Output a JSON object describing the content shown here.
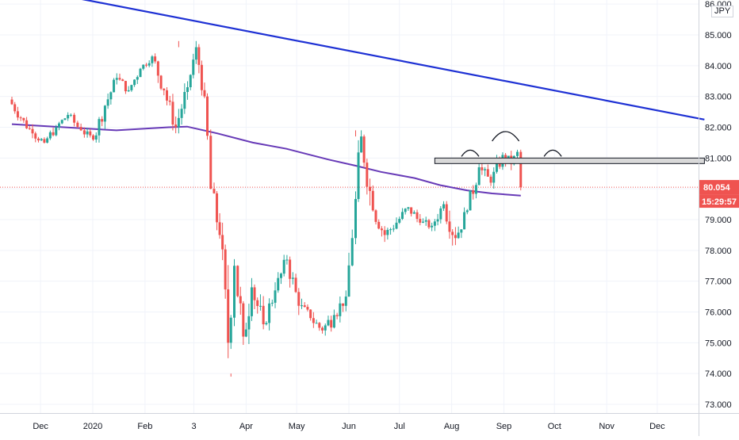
{
  "chart_data": {
    "type": "candlestick",
    "currency": "JPY",
    "y_axis": {
      "ticks": [
        "86.000",
        "85.000",
        "84.000",
        "83.000",
        "82.000",
        "81.000",
        "80.000",
        "79.000",
        "78.000",
        "77.000",
        "76.000",
        "75.000",
        "74.000",
        "73.000"
      ],
      "range": [
        72.8,
        86.1
      ]
    },
    "x_axis": {
      "labels": [
        "Dec",
        "2020",
        "Feb",
        "3",
        "Apr",
        "May",
        "Jun",
        "Jul",
        "Aug",
        "Sep",
        "Oct",
        "Nov",
        "Dec"
      ]
    },
    "last_price": {
      "value": "80.054",
      "countdown": "15:29:57"
    },
    "trendline": {
      "start": [
        "2019-11-14",
        86.6
      ],
      "end": [
        "2020-12-29",
        82.25
      ]
    },
    "resistance_zone": {
      "top": 81.0,
      "bottom": 80.82,
      "from": "2020-07-22",
      "to": "2020-12-29"
    },
    "moving_average": [
      [
        "2019-11-14",
        82.1
      ],
      [
        "2019-12-15",
        82.0
      ],
      [
        "2020-01-15",
        81.9
      ],
      [
        "2020-02-15",
        82.0
      ],
      [
        "2020-02-26",
        82.02
      ],
      [
        "2020-03-15",
        81.8
      ],
      [
        "2020-04-05",
        81.5
      ],
      [
        "2020-04-25",
        81.3
      ],
      [
        "2020-05-20",
        80.95
      ],
      [
        "2020-06-05",
        80.75
      ],
      [
        "2020-06-20",
        80.55
      ],
      [
        "2020-07-10",
        80.35
      ],
      [
        "2020-07-25",
        80.12
      ],
      [
        "2020-08-10",
        79.95
      ],
      [
        "2020-08-25",
        79.85
      ],
      [
        "2020-09-11",
        79.78
      ]
    ],
    "candles": [
      [
        "2019-11-14",
        82.9,
        82.3,
        83.1,
        82.2
      ],
      [
        "2019-11-21",
        82.3,
        81.8,
        82.5,
        81.6
      ],
      [
        "2019-11-28",
        81.8,
        81.5,
        82.0,
        81.3
      ],
      [
        "2019-12-05",
        81.5,
        82.0,
        82.3,
        81.4
      ],
      [
        "2019-12-12",
        82.0,
        82.4,
        82.6,
        81.9
      ],
      [
        "2019-12-19",
        82.4,
        81.9,
        82.5,
        81.7
      ],
      [
        "2019-12-27",
        81.9,
        81.6,
        82.1,
        81.4
      ],
      [
        "2020-01-03",
        81.6,
        82.7,
        82.9,
        81.5
      ],
      [
        "2020-01-10",
        82.7,
        83.6,
        83.8,
        82.6
      ],
      [
        "2020-01-17",
        83.6,
        83.2,
        83.9,
        83.0
      ],
      [
        "2020-01-24",
        83.2,
        83.9,
        84.1,
        83.1
      ],
      [
        "2020-01-31",
        83.9,
        84.3,
        84.5,
        83.8
      ],
      [
        "2020-02-07",
        84.3,
        83.2,
        84.4,
        82.9
      ],
      [
        "2020-02-14",
        83.2,
        82.0,
        83.3,
        81.7
      ],
      [
        "2020-02-21",
        82.0,
        83.3,
        83.5,
        81.8
      ],
      [
        "2020-02-28",
        83.3,
        84.6,
        84.8,
        83.2
      ],
      [
        "2020-03-04",
        84.6,
        83.0,
        84.7,
        82.6
      ],
      [
        "2020-03-09",
        83.0,
        80.0,
        83.1,
        79.5
      ],
      [
        "2020-03-13",
        80.0,
        78.5,
        80.4,
        78.2
      ],
      [
        "2020-03-18",
        78.5,
        75.0,
        78.9,
        74.0
      ],
      [
        "2020-03-23",
        75.0,
        77.5,
        77.8,
        74.8
      ],
      [
        "2020-03-27",
        77.5,
        75.2,
        77.6,
        73.9
      ],
      [
        "2020-04-01",
        75.2,
        76.8,
        78.0,
        74.9
      ],
      [
        "2020-04-06",
        76.8,
        75.6,
        77.2,
        75.0
      ],
      [
        "2020-04-13",
        75.6,
        76.7,
        77.0,
        75.4
      ],
      [
        "2020-04-20",
        76.7,
        77.7,
        77.9,
        76.4
      ],
      [
        "2020-04-27",
        77.7,
        76.2,
        77.8,
        75.9
      ],
      [
        "2020-05-04",
        76.2,
        75.8,
        76.6,
        75.3
      ],
      [
        "2020-05-11",
        75.8,
        75.4,
        76.1,
        75.0
      ],
      [
        "2020-05-18",
        75.4,
        75.9,
        76.4,
        74.8
      ],
      [
        "2020-05-25",
        75.9,
        76.5,
        76.9,
        75.6
      ],
      [
        "2020-06-01",
        76.5,
        78.4,
        78.8,
        76.3
      ],
      [
        "2020-06-05",
        78.4,
        81.7,
        81.9,
        78.2
      ],
      [
        "2020-06-10",
        81.7,
        79.3,
        81.8,
        79.0
      ],
      [
        "2020-06-17",
        79.3,
        78.5,
        79.6,
        78.2
      ],
      [
        "2020-06-24",
        78.5,
        78.9,
        79.2,
        78.1
      ],
      [
        "2020-07-01",
        78.9,
        79.4,
        79.6,
        78.6
      ],
      [
        "2020-07-08",
        79.4,
        78.9,
        79.7,
        78.6
      ],
      [
        "2020-07-15",
        78.9,
        78.8,
        79.2,
        78.4
      ],
      [
        "2020-07-22",
        78.8,
        79.5,
        79.8,
        78.6
      ],
      [
        "2020-07-29",
        79.5,
        78.4,
        79.6,
        77.6
      ],
      [
        "2020-08-05",
        78.4,
        79.3,
        79.5,
        78.2
      ],
      [
        "2020-08-12",
        79.3,
        80.7,
        80.9,
        79.2
      ],
      [
        "2020-08-19",
        80.7,
        80.2,
        81.0,
        79.8
      ],
      [
        "2020-08-26",
        80.2,
        81.1,
        81.4,
        80.0
      ],
      [
        "2020-09-02",
        81.1,
        80.8,
        81.5,
        80.4
      ],
      [
        "2020-09-07",
        80.8,
        81.2,
        81.4,
        80.7
      ],
      [
        "2020-09-11",
        81.2,
        80.05,
        81.3,
        79.95
      ]
    ]
  }
}
